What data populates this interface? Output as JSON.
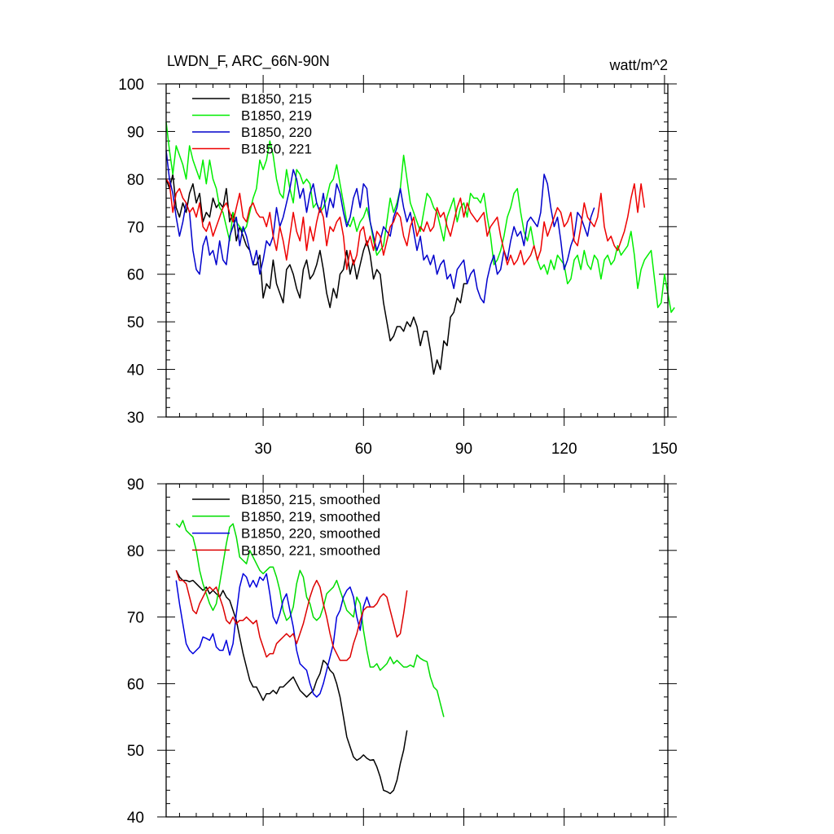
{
  "chart_data": [
    {
      "type": "line",
      "title": "LWDN_F, ARC_66N-90N",
      "units": "watt/m^2",
      "xlim": [
        1,
        151
      ],
      "ylim": [
        30,
        100
      ],
      "x_ticks": [
        30,
        60,
        90,
        120,
        150
      ],
      "y_ticks": [
        30,
        40,
        50,
        60,
        70,
        80,
        90,
        100
      ],
      "legend_position": "top-left",
      "series": [
        {
          "name": "B1850, 215",
          "color": "#000000",
          "x_start": 1,
          "values": [
            80,
            78,
            81,
            74,
            72,
            75,
            73,
            77,
            79,
            75,
            77,
            71,
            73,
            72,
            76,
            74,
            75,
            74,
            78,
            71,
            73,
            67,
            70,
            68,
            66,
            65,
            62,
            62,
            64,
            55,
            58,
            57,
            63,
            58,
            56,
            54,
            61,
            62,
            60,
            57,
            55,
            61,
            63,
            59,
            60,
            62,
            65,
            61,
            56,
            53,
            57,
            55,
            60,
            61,
            65,
            60,
            63,
            59,
            62,
            65,
            67,
            64,
            59,
            61,
            60,
            54,
            50,
            46,
            47,
            49,
            49,
            48,
            50,
            49,
            51,
            49,
            45,
            48,
            48,
            44,
            39,
            42,
            40,
            46,
            45,
            51,
            52,
            55,
            54,
            58,
            58
          ]
        },
        {
          "name": "B1850, 219",
          "color": "#00ee00",
          "x_start": 1,
          "values": [
            92,
            86,
            81,
            87,
            85,
            83,
            80,
            87,
            84,
            82,
            80,
            84,
            79,
            84,
            80,
            78,
            74,
            73,
            70,
            67,
            73,
            71,
            70,
            69,
            70,
            73,
            76,
            78,
            84,
            82,
            84,
            88,
            85,
            80,
            77,
            76,
            82,
            78,
            75,
            82,
            81,
            79,
            80,
            79,
            74,
            75,
            73,
            74,
            76,
            79,
            80,
            83,
            79,
            75,
            71,
            70,
            72,
            69,
            71,
            72,
            74,
            71,
            67,
            64,
            65,
            66,
            71,
            76,
            73,
            75,
            78,
            85,
            80,
            75,
            73,
            71,
            69,
            73,
            77,
            76,
            74,
            73,
            70,
            67,
            72,
            74,
            76,
            71,
            74,
            75,
            72,
            77,
            76,
            76,
            75,
            77,
            72,
            68,
            62,
            63,
            65,
            68,
            72,
            74,
            77,
            78,
            73,
            69,
            67,
            70,
            66,
            63,
            61,
            62,
            60,
            63,
            61,
            64,
            63,
            62,
            58,
            59,
            63,
            64,
            61,
            65,
            62,
            61,
            64,
            63,
            59,
            63,
            64,
            62,
            63,
            66,
            64,
            65,
            66,
            69,
            64,
            57,
            61,
            63,
            64,
            65,
            59,
            53,
            54,
            60,
            56,
            52,
            53
          ]
        },
        {
          "name": "B1850, 220",
          "color": "#0000cc",
          "x_start": 1,
          "values": [
            86,
            80,
            77,
            72,
            68,
            71,
            75,
            73,
            65,
            61,
            60,
            66,
            68,
            64,
            65,
            62,
            67,
            63,
            62,
            68,
            70,
            72,
            66,
            70,
            68,
            65,
            62,
            65,
            60,
            63,
            67,
            66,
            68,
            74,
            70,
            72,
            75,
            78,
            82,
            80,
            76,
            78,
            73,
            77,
            79,
            75,
            73,
            77,
            72,
            76,
            74,
            79,
            77,
            73,
            70,
            72,
            76,
            78,
            74,
            79,
            78,
            71,
            68,
            65,
            67,
            70,
            69,
            68,
            72,
            74,
            78,
            74,
            71,
            73,
            69,
            65,
            68,
            63,
            64,
            62,
            64,
            60,
            62,
            63,
            59,
            60,
            57,
            61,
            62,
            63,
            58,
            60,
            61,
            57,
            55,
            54,
            59,
            62,
            64,
            60,
            61,
            65,
            63,
            67,
            70,
            68,
            69,
            66,
            71,
            72,
            71,
            70,
            73,
            81,
            79,
            74,
            70,
            72,
            67,
            61,
            63,
            66,
            68,
            73,
            72,
            70,
            68,
            72,
            74
          ]
        },
        {
          "name": "B1850, 221",
          "color": "#ee0000",
          "x_start": 1,
          "values": [
            80,
            79,
            73,
            77,
            78,
            76,
            75,
            73,
            74,
            72,
            75,
            70,
            69,
            71,
            68,
            70,
            72,
            74,
            75,
            73,
            71,
            74,
            77,
            72,
            71,
            74,
            75,
            73,
            72,
            72,
            70,
            73,
            68,
            65,
            70,
            67,
            63,
            68,
            73,
            69,
            67,
            72,
            65,
            70,
            67,
            71,
            74,
            72,
            66,
            70,
            69,
            71,
            72,
            68,
            61,
            65,
            62,
            64,
            69,
            70,
            66,
            68,
            65,
            69,
            68,
            64,
            67,
            70,
            71,
            73,
            72,
            68,
            66,
            70,
            72,
            68,
            70,
            69,
            71,
            69,
            70,
            74,
            72,
            73,
            70,
            68,
            71,
            74,
            76,
            72,
            75,
            73,
            72,
            71,
            72,
            73,
            68,
            70,
            71,
            72,
            68,
            65,
            62,
            64,
            62,
            63,
            65,
            62,
            63,
            64,
            66,
            63,
            65,
            71,
            68,
            70,
            72,
            74,
            73,
            70,
            71,
            73,
            67,
            66,
            70,
            75,
            72,
            71,
            70,
            72,
            77,
            70,
            67,
            68,
            66,
            65,
            67,
            69,
            72,
            76,
            79,
            73,
            79,
            74
          ]
        }
      ]
    },
    {
      "type": "line",
      "title": "",
      "xlim": [
        1,
        151
      ],
      "ylim": [
        40,
        90
      ],
      "x_ticks": [
        30,
        60,
        90,
        120,
        150
      ],
      "y_ticks": [
        40,
        50,
        60,
        70,
        80,
        90
      ],
      "legend_position": "top-left",
      "series": [
        {
          "name": "B1850, 215, smoothed",
          "color": "#000000",
          "x_start": 4,
          "values": [
            77,
            76,
            75.5,
            75.5,
            75.3,
            75.5,
            75,
            74.5,
            74,
            74.5,
            73.5,
            74,
            73.5,
            73,
            74,
            73,
            72.5,
            71,
            69.5,
            67,
            64.5,
            62.5,
            60.5,
            59.5,
            59.5,
            58.5,
            57.5,
            58.5,
            58.5,
            59,
            58.5,
            59.5,
            59.5,
            60,
            60.5,
            61,
            60,
            59,
            58.5,
            58,
            58.5,
            59,
            60.5,
            61.5,
            63.5,
            63,
            62,
            61.5,
            60,
            58,
            55,
            52,
            50.5,
            49,
            48.5,
            48.8,
            49.3,
            48.8,
            48.5,
            48.6,
            47.5,
            46,
            44,
            43.8,
            43.5,
            44,
            45.5,
            48,
            50,
            53
          ]
        },
        {
          "name": "B1850, 219, smoothed",
          "color": "#00dd00",
          "x_start": 4,
          "values": [
            84,
            83.5,
            84.5,
            83,
            82.5,
            82,
            80,
            77,
            75,
            73.5,
            72,
            71,
            72,
            75,
            78,
            81,
            83.5,
            84,
            82,
            79,
            78.5,
            78,
            80,
            79,
            78,
            77,
            76.5,
            77,
            77.5,
            77.5,
            76,
            74,
            71,
            69.5,
            70,
            71.5,
            75,
            77,
            76,
            73,
            72,
            70,
            69.5,
            70,
            71.5,
            73.5,
            74,
            74.5,
            75.5,
            74,
            72.5,
            71,
            70.5,
            70,
            73,
            72,
            68,
            65,
            62.5,
            62.5,
            63,
            62,
            62.5,
            63,
            64,
            63,
            63.5,
            63,
            62.5,
            62.5,
            62.8,
            62.5,
            64.3,
            63.8,
            63.5,
            63.3,
            61,
            59.5,
            59,
            57,
            55
          ]
        },
        {
          "name": "B1850, 220, smoothed",
          "color": "#0000dd",
          "x_start": 4,
          "values": [
            75.5,
            72,
            69,
            66,
            65,
            64.5,
            65,
            65.5,
            67,
            66.8,
            66.5,
            67.5,
            65.5,
            65,
            65,
            66.5,
            64.3,
            66,
            70.5,
            74.5,
            76.5,
            76,
            74.5,
            75.5,
            74.5,
            76,
            75.5,
            76.5,
            73.5,
            70,
            69,
            70.5,
            72.5,
            73.5,
            71,
            68.5,
            65,
            63,
            62.5,
            62,
            60,
            58.5,
            58,
            58.5,
            60,
            62,
            64,
            66,
            70,
            71,
            73,
            74,
            74.5,
            73,
            70,
            68,
            71.5,
            73,
            71.5,
            71.5
          ]
        },
        {
          "name": "B1850, 221, smoothed",
          "color": "#dd0000",
          "x_start": 4,
          "values": [
            77,
            75.5,
            75.5,
            75,
            73,
            71,
            70.5,
            72,
            73,
            74,
            74.5,
            74,
            74.5,
            73,
            71.5,
            69.5,
            69,
            70,
            69,
            69.5,
            69.5,
            70,
            69.5,
            69,
            69.5,
            67,
            65.5,
            64,
            64.5,
            64.5,
            66,
            66.5,
            67,
            67.5,
            67,
            67.5,
            66,
            67.5,
            69,
            71,
            73,
            74.5,
            75.5,
            74.5,
            72,
            70,
            67.5,
            65.5,
            64.5,
            63.5,
            63.5,
            63.5,
            64,
            66,
            67.5,
            69.5,
            71,
            71.5,
            71.5,
            71.5,
            72,
            73,
            73.5,
            73,
            71,
            69,
            67,
            67.5,
            70.5,
            74
          ]
        }
      ]
    }
  ]
}
